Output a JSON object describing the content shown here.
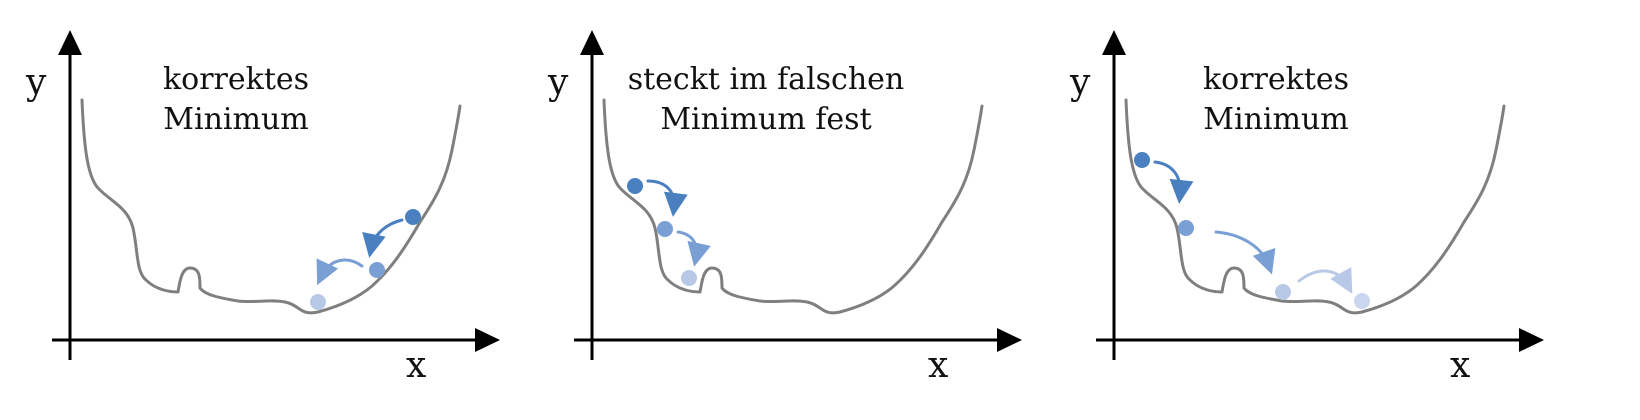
{
  "colors": {
    "axis": "#000000",
    "curve": "#7f7f7f",
    "ball_1": "#4a80c0",
    "ball_2": "#7a9fd4",
    "ball_3": "#b8c9e8",
    "ball_4": "#c9d6ee"
  },
  "panels": [
    {
      "title_line1": "korrektes",
      "title_line2": "Minimum",
      "y_label": "y",
      "x_label": "x"
    },
    {
      "title_line1": "steckt im falschen",
      "title_line2": "Minimum fest",
      "y_label": "y",
      "x_label": "x"
    },
    {
      "title_line1": "korrektes",
      "title_line2": "Minimum",
      "y_label": "y",
      "x_label": "x"
    }
  ]
}
